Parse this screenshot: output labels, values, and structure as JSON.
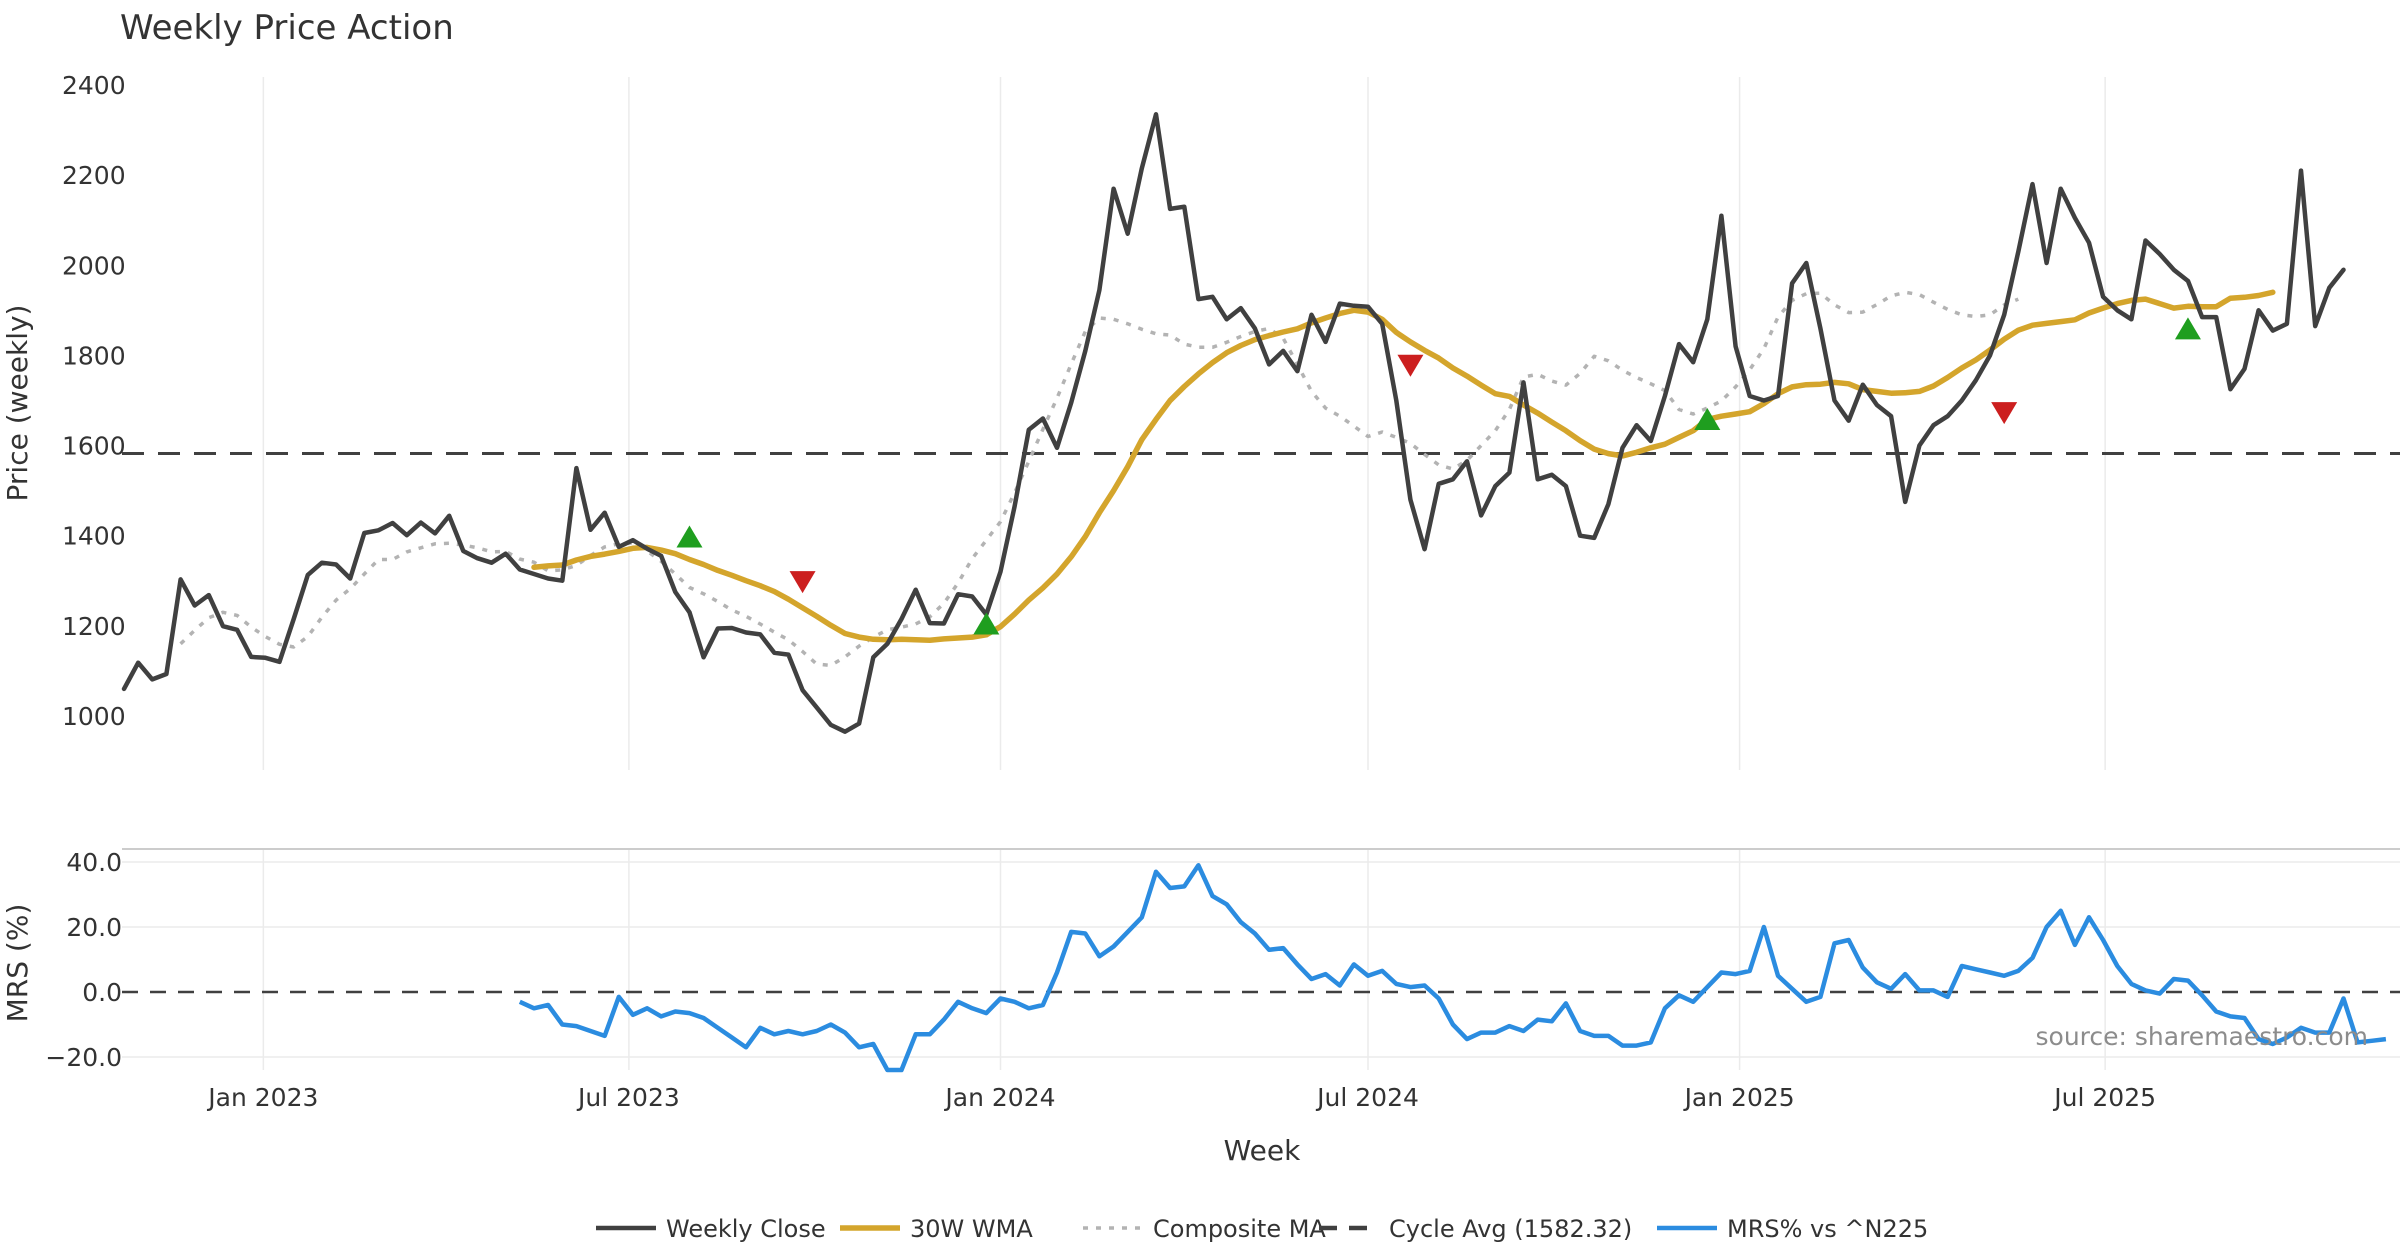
{
  "chart_data": {
    "type": "line",
    "title": "Weekly Price Action",
    "xlabel": "Week",
    "x_tick_labels": [
      "Jan 2023",
      "Jul 2023",
      "Jan 2024",
      "Jul 2024",
      "Jan 2025",
      "Jul 2025"
    ],
    "x_tick_dates": [
      "2023-01-01",
      "2023-07-01",
      "2024-01-01",
      "2024-07-01",
      "2025-01-01",
      "2025-07-01"
    ],
    "x_range": [
      "2022-10-23",
      "2025-11-24"
    ],
    "grid": true,
    "legend_position": "bottom-center",
    "source": "source: sharemaestro.com",
    "price_panel": {
      "ylabel": "Price (weekly)",
      "ylim": [
        880,
        2400
      ],
      "y_ticks": [
        1000,
        1200,
        1400,
        1600,
        1800,
        2000,
        2200,
        2400
      ],
      "start_date": "2022-10-24",
      "series": [
        {
          "name": "Weekly Close",
          "color": "#404040",
          "style": "solid",
          "values": [
            1060,
            1118,
            1081,
            1093,
            1303,
            1245,
            1268,
            1199,
            1191,
            1131,
            1129,
            1120,
            1215,
            1313,
            1340,
            1336,
            1305,
            1406,
            1412,
            1428,
            1401,
            1429,
            1405,
            1444,
            1366,
            1350,
            1340,
            1360,
            1325,
            1315,
            1305,
            1300,
            1550,
            1413,
            1451,
            1375,
            1390,
            1371,
            1355,
            1275,
            1230,
            1130,
            1194,
            1195,
            1185,
            1181,
            1140,
            1136,
            1057,
            1019,
            980,
            965,
            983,
            1130,
            1160,
            1215,
            1280,
            1206,
            1205,
            1270,
            1265,
            1225,
            1320,
            1465,
            1635,
            1660,
            1595,
            1695,
            1810,
            1945,
            2170,
            2070,
            2215,
            2335,
            2125,
            2130,
            1925,
            1930,
            1880,
            1905,
            1860,
            1780,
            1810,
            1765,
            1890,
            1830,
            1915,
            1910,
            1908,
            1870,
            1700,
            1480,
            1370,
            1515,
            1525,
            1565,
            1445,
            1510,
            1540,
            1740,
            1525,
            1535,
            1510,
            1400,
            1395,
            1470,
            1595,
            1645,
            1610,
            1710,
            1825,
            1785,
            1880,
            2110,
            1820,
            1710,
            1700,
            1710,
            1960,
            2005,
            1860,
            1700,
            1655,
            1735,
            1690,
            1665,
            1475,
            1600,
            1645,
            1665,
            1700,
            1745,
            1800,
            1890,
            2030,
            2180,
            2005,
            2170,
            2105,
            2050,
            1930,
            1900,
            1880,
            2055,
            2025,
            1990,
            1965,
            1885,
            1885,
            1725,
            1770,
            1900,
            1855,
            1870,
            2210,
            1865,
            1950,
            1990
          ]
        },
        {
          "name": "30W WMA",
          "color": "#d4a52c",
          "style": "solid",
          "start_index": 29,
          "values": [
            1330,
            1333,
            1335,
            1346,
            1354,
            1359,
            1365,
            1372,
            1374,
            1368,
            1360,
            1347,
            1336,
            1323,
            1312,
            1300,
            1289,
            1276,
            1259,
            1240,
            1221,
            1201,
            1183,
            1175,
            1170,
            1169,
            1170,
            1169,
            1168,
            1171,
            1173,
            1175,
            1180,
            1198,
            1226,
            1257,
            1284,
            1315,
            1353,
            1398,
            1451,
            1500,
            1553,
            1613,
            1658,
            1700,
            1731,
            1759,
            1784,
            1806,
            1822,
            1835,
            1844,
            1852,
            1859,
            1872,
            1883,
            1893,
            1900,
            1896,
            1880,
            1851,
            1830,
            1811,
            1794,
            1772,
            1754,
            1734,
            1715,
            1709,
            1690,
            1672,
            1652,
            1633,
            1611,
            1592,
            1582,
            1577,
            1585,
            1595,
            1603,
            1618,
            1633,
            1658,
            1665,
            1670,
            1675,
            1693,
            1715,
            1730,
            1735,
            1736,
            1740,
            1737,
            1724,
            1720,
            1716,
            1717,
            1720,
            1732,
            1751,
            1772,
            1790,
            1812,
            1836,
            1856,
            1867,
            1871,
            1875,
            1879,
            1894,
            1905,
            1915,
            1922,
            1925,
            1915,
            1905,
            1909,
            1908,
            1908,
            1927,
            1929,
            1933,
            1940
          ]
        },
        {
          "name": "Composite MA",
          "color": "#b3b3b3",
          "style": "dotted",
          "start_index": 4,
          "values": [
            1160,
            1190,
            1218,
            1230,
            1223,
            1197,
            1176,
            1159,
            1153,
            1176,
            1219,
            1257,
            1282,
            1315,
            1347,
            1347,
            1364,
            1373,
            1382,
            1383,
            1379,
            1373,
            1364,
            1365,
            1348,
            1341,
            1322,
            1324,
            1334,
            1356,
            1375,
            1382,
            1384,
            1366,
            1343,
            1315,
            1285,
            1271,
            1254,
            1235,
            1221,
            1204,
            1186,
            1169,
            1143,
            1115,
            1112,
            1131,
            1155,
            1175,
            1191,
            1197,
            1204,
            1220,
            1250,
            1295,
            1349,
            1390,
            1431,
            1495,
            1565,
            1636,
            1705,
            1781,
            1853,
            1883,
            1880,
            1870,
            1858,
            1848,
            1845,
            1825,
            1818,
            1818,
            1829,
            1842,
            1853,
            1860,
            1838,
            1780,
            1720,
            1683,
            1665,
            1643,
            1620,
            1630,
            1618,
            1605,
            1580,
            1557,
            1548,
            1567,
            1600,
            1633,
            1680,
            1752,
            1758,
            1743,
            1734,
            1760,
            1798,
            1788,
            1767,
            1751,
            1737,
            1722,
            1680,
            1670,
            1683,
            1699,
            1730,
            1768,
            1815,
            1885,
            1922,
            1937,
            1938,
            1912,
            1895,
            1896,
            1913,
            1932,
            1940,
            1935,
            1918,
            1902,
            1890,
            1886,
            1890,
            1912,
            1925
          ]
        },
        {
          "name": "Cycle Avg (1582.32)",
          "color": "#404040",
          "style": "dashed",
          "constant": 1582.32
        }
      ],
      "markers": [
        {
          "type": "buy",
          "date": "2023-07-31",
          "value": 1398
        },
        {
          "type": "sell",
          "date": "2023-09-25",
          "value": 1297
        },
        {
          "type": "buy",
          "date": "2023-12-25",
          "value": 1205
        },
        {
          "type": "sell",
          "date": "2024-07-22",
          "value": 1777
        },
        {
          "type": "buy",
          "date": "2024-12-16",
          "value": 1659
        },
        {
          "type": "sell",
          "date": "2025-05-12",
          "value": 1672
        },
        {
          "type": "buy",
          "date": "2025-08-11",
          "value": 1860
        }
      ]
    },
    "mrs_panel": {
      "ylabel": "MRS (%)",
      "ylim": [
        -24,
        44
      ],
      "y_ticks": [
        -20,
        0,
        20,
        40
      ],
      "y_tick_labels": [
        "−20.0",
        "0.0",
        "20.0",
        "40.0"
      ],
      "series": [
        {
          "name": "MRS% vs ^N225",
          "color": "#2b8ce0",
          "style": "solid",
          "start_date": "2023-05-08",
          "values": [
            -3,
            -5,
            -4,
            -10,
            -10.5,
            -12,
            -13.5,
            -1.5,
            -7,
            -5,
            -7.5,
            -6,
            -6.5,
            -8,
            -11,
            -14,
            -17,
            -11,
            -13,
            -12,
            -13,
            -12,
            -10,
            -12.5,
            -17,
            -16,
            -24,
            -24,
            -13,
            -13,
            -8.5,
            -3,
            -5,
            -6.5,
            -2,
            -3,
            -5,
            -4,
            6,
            18.5,
            18,
            11,
            14,
            18.5,
            23,
            37,
            32,
            32.5,
            39,
            29.5,
            27,
            21.5,
            18,
            13,
            13.5,
            8.5,
            4,
            5.5,
            2,
            8.5,
            5,
            6.5,
            2.5,
            1.5,
            2,
            -2,
            -10,
            -14.5,
            -12.5,
            -12.5,
            -10.5,
            -12,
            -8.5,
            -9,
            -3.5,
            -12,
            -13.5,
            -13.5,
            -16.5,
            -16.5,
            -15.5,
            -5,
            -1,
            -3,
            1.5,
            6,
            5.5,
            6.5,
            20,
            5,
            1,
            -3,
            -1.5,
            15,
            16,
            7.5,
            3,
            1,
            5.5,
            0.5,
            0.5,
            -1.5,
            8,
            7,
            6,
            5,
            6.5,
            10.5,
            20,
            25,
            14.5,
            23,
            16,
            8,
            2.5,
            0.5,
            -0.5,
            4,
            3.5,
            -1,
            -6,
            -7.5,
            -8,
            -14.5,
            -16,
            -14,
            -11,
            -12.5,
            -12.5,
            -2,
            -15.5,
            -15,
            -14.5
          ]
        }
      ]
    }
  }
}
